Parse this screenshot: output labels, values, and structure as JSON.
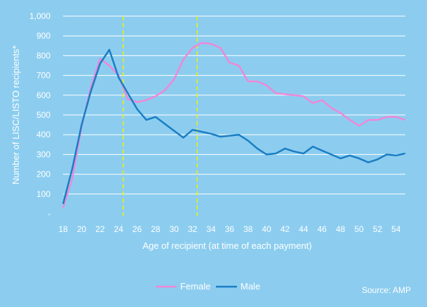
{
  "chart_data": {
    "type": "line",
    "ylabel": "Number of LISC/LISTO recipients*",
    "xlabel": "Age of recipient (at time of each payment)",
    "source": "Source: AMP",
    "ylim": [
      0,
      1000
    ],
    "xlim": [
      18,
      55
    ],
    "y_ticks": [
      0,
      100,
      200,
      300,
      400,
      500,
      600,
      700,
      800,
      900,
      1000
    ],
    "y_tick_labels": [
      "-",
      "100",
      "200",
      "300",
      "400",
      "500",
      "600",
      "700",
      "800",
      "900",
      "1,000"
    ],
    "x_ticks": [
      18,
      20,
      22,
      24,
      26,
      28,
      30,
      32,
      34,
      36,
      38,
      40,
      42,
      44,
      46,
      48,
      50,
      52,
      54
    ],
    "x_tick_labels": [
      "18",
      "20",
      "22",
      "24",
      "26",
      "28",
      "30",
      "32",
      "34",
      "36",
      "38",
      "40",
      "42",
      "44",
      "46",
      "48",
      "50",
      "52",
      "54"
    ],
    "grid": true,
    "legend_position": "bottom",
    "reference_lines": [
      24.5,
      32.5
    ],
    "colors": {
      "background": "#8ccdef",
      "grid": "#ffffff",
      "axis_text": "#ffffff",
      "reference_line": "#f0f000"
    },
    "series": [
      {
        "name": "Female",
        "color": "#ee88d8",
        "x": [
          18,
          19,
          20,
          21,
          22,
          23,
          24,
          25,
          26,
          27,
          28,
          29,
          30,
          31,
          32,
          33,
          34,
          35,
          36,
          37,
          38,
          39,
          40,
          41,
          42,
          43,
          44,
          45,
          46,
          47,
          48,
          49,
          50,
          51,
          52,
          53,
          54,
          55
        ],
        "values": [
          30,
          180,
          440,
          640,
          785,
          750,
          700,
          580,
          565,
          575,
          595,
          625,
          680,
          780,
          840,
          865,
          860,
          840,
          765,
          750,
          670,
          670,
          650,
          610,
          605,
          600,
          595,
          560,
          575,
          535,
          510,
          475,
          445,
          475,
          475,
          490,
          490,
          475
        ]
      },
      {
        "name": "Male",
        "color": "#1a7ec4",
        "x": [
          18,
          19,
          20,
          21,
          22,
          23,
          24,
          25,
          26,
          27,
          28,
          29,
          30,
          31,
          32,
          33,
          34,
          35,
          36,
          37,
          38,
          39,
          40,
          41,
          42,
          43,
          44,
          45,
          46,
          47,
          48,
          49,
          50,
          51,
          52,
          53,
          54,
          55
        ],
        "values": [
          50,
          230,
          450,
          620,
          760,
          830,
          690,
          610,
          530,
          475,
          490,
          455,
          420,
          385,
          425,
          415,
          405,
          390,
          395,
          400,
          370,
          330,
          300,
          305,
          330,
          315,
          305,
          340,
          320,
          300,
          280,
          295,
          280,
          260,
          275,
          300,
          295,
          305
        ]
      }
    ]
  }
}
